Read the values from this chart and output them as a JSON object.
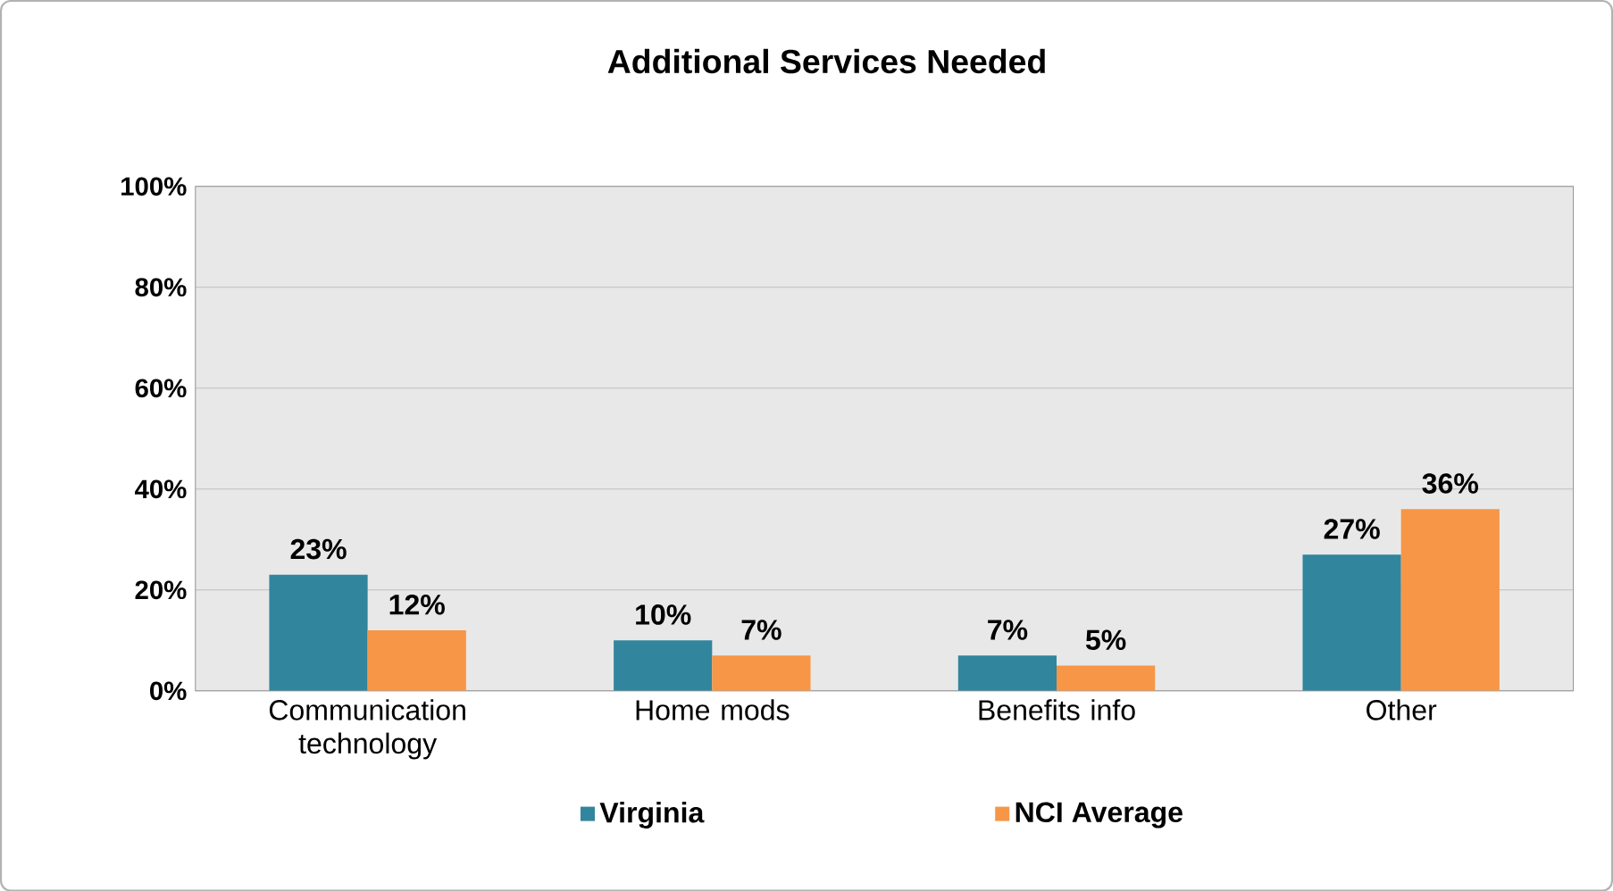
{
  "chart_data": {
    "type": "bar",
    "title": "Additional Services Needed",
    "categories": [
      "Communication technology",
      "Home mods",
      "Benefits info",
      "Other"
    ],
    "series": [
      {
        "name": "Virginia",
        "color": "#31859c",
        "values": [
          23,
          10,
          7,
          27
        ],
        "value_labels": [
          "23%",
          "10%",
          "7%",
          "27%"
        ]
      },
      {
        "name": "NCI Average",
        "color": "#f79646",
        "values": [
          12,
          7,
          5,
          36
        ],
        "value_labels": [
          "12%",
          "7%",
          "5%",
          "36%"
        ]
      }
    ],
    "ylim": [
      0,
      100
    ],
    "yticks": [
      {
        "value": 0,
        "label": "0%"
      },
      {
        "value": 20,
        "label": "20%"
      },
      {
        "value": 40,
        "label": "40%"
      },
      {
        "value": 60,
        "label": "60%"
      },
      {
        "value": 80,
        "label": "80%"
      },
      {
        "value": 100,
        "label": "100%"
      }
    ],
    "grid": "y",
    "legend": "bottom"
  }
}
